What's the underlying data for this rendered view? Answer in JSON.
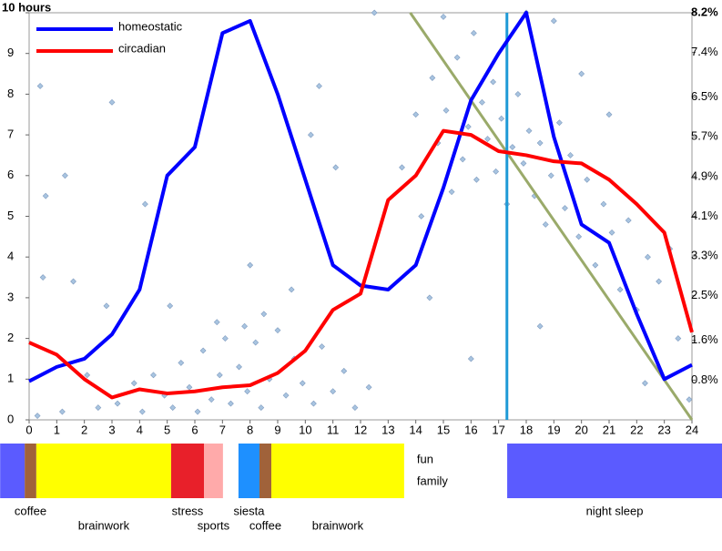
{
  "chart_data": {
    "type": "line",
    "xlim": [
      0,
      24
    ],
    "xticks": [
      0,
      1,
      2,
      3,
      4,
      5,
      6,
      7,
      8,
      9,
      10,
      11,
      12,
      13,
      14,
      15,
      16,
      17,
      18,
      19,
      20,
      21,
      22,
      23,
      24
    ],
    "ylim": [
      0,
      10
    ],
    "yticks": [
      0,
      1,
      2,
      3,
      4,
      5,
      6,
      7,
      8,
      9,
      {
        "value": 10,
        "label": "10 hours"
      }
    ],
    "y2lim": [
      0,
      8.2
    ],
    "y2ticks": [
      {
        "value": 0.8,
        "label": "0.8%"
      },
      {
        "value": 1.6,
        "label": "1.6%"
      },
      {
        "value": 2.5,
        "label": "2.5%"
      },
      {
        "value": 3.3,
        "label": "3.3%"
      },
      {
        "value": 4.1,
        "label": "4.1%"
      },
      {
        "value": 4.9,
        "label": "4.9%"
      },
      {
        "value": 5.7,
        "label": "5.7%"
      },
      {
        "value": 6.5,
        "label": "6.5%"
      },
      {
        "value": 7.4,
        "label": "7.4%"
      },
      {
        "value": 8.2,
        "label": "8.2%"
      }
    ],
    "x": [
      0,
      1,
      2,
      3,
      4,
      5,
      6,
      7,
      8,
      9,
      10,
      11,
      12,
      13,
      14,
      15,
      16,
      17,
      18,
      19,
      20,
      21,
      22,
      23,
      24
    ],
    "series": [
      {
        "name": "homeostatic",
        "color": "#0000ff",
        "values": [
          0.95,
          1.3,
          1.5,
          2.1,
          3.2,
          6.0,
          6.7,
          9.5,
          9.8,
          8.0,
          5.9,
          3.8,
          3.3,
          3.2,
          3.8,
          5.7,
          7.85,
          9.0,
          10.0,
          6.95,
          4.8,
          4.35,
          2.6,
          1.0,
          1.35
        ]
      },
      {
        "name": "circadian",
        "color": "#ff0000",
        "values": [
          1.9,
          1.6,
          1.0,
          0.55,
          0.75,
          0.65,
          0.7,
          0.8,
          0.85,
          1.15,
          1.7,
          2.7,
          3.1,
          5.4,
          6.0,
          7.1,
          7.0,
          6.6,
          6.5,
          6.35,
          6.3,
          5.9,
          5.3,
          4.6,
          2.15
        ]
      }
    ],
    "points": {
      "color": "#a8c4e0",
      "x": [
        3.2,
        3.8,
        4.1,
        4.5,
        4.9,
        5.2,
        5.5,
        5.8,
        6.1,
        6.3,
        6.6,
        6.9,
        7.1,
        7.3,
        7.6,
        7.9,
        8.2,
        8.4,
        8.7,
        9.0,
        9.3,
        9.6,
        9.9,
        10.3,
        10.6,
        11.0,
        11.4,
        11.8,
        12.3,
        2.5,
        1.2,
        0.3,
        2.1,
        6.8,
        7.8,
        8.5,
        5.1,
        9.5,
        8.0,
        13.5,
        14.0,
        14.2,
        14.6,
        14.8,
        15.1,
        15.3,
        15.5,
        15.7,
        15.9,
        16.1,
        16.2,
        16.4,
        16.6,
        16.8,
        16.9,
        17.1,
        17.3,
        17.5,
        17.7,
        17.9,
        18.1,
        18.3,
        18.5,
        18.7,
        18.9,
        19.2,
        19.4,
        19.6,
        19.9,
        20.2,
        20.5,
        20.8,
        21.1,
        21.4,
        21.7,
        22.0,
        22.4,
        22.8,
        23.2,
        23.5,
        20.0,
        21.0,
        19.0,
        18.0,
        15.0,
        12.5,
        10.5,
        10.2,
        11.1,
        0.4,
        0.6,
        1.3,
        3.0,
        1.6,
        0.5,
        23.9,
        22.3,
        16.0,
        18.5,
        14.5,
        4.2,
        2.8
      ],
      "y": [
        0.4,
        0.9,
        0.2,
        1.1,
        0.6,
        0.3,
        1.4,
        0.8,
        0.2,
        1.7,
        0.5,
        1.1,
        2.0,
        0.4,
        1.3,
        0.7,
        1.9,
        0.3,
        1.0,
        2.2,
        0.6,
        1.5,
        0.9,
        0.4,
        1.8,
        0.7,
        1.2,
        0.3,
        0.8,
        0.3,
        0.2,
        0.1,
        1.1,
        2.4,
        2.3,
        2.6,
        2.8,
        3.2,
        3.8,
        6.2,
        7.5,
        5.0,
        8.4,
        6.8,
        7.6,
        5.6,
        8.9,
        6.4,
        7.2,
        9.5,
        5.9,
        7.8,
        6.9,
        8.3,
        6.1,
        7.4,
        5.3,
        6.7,
        8.0,
        6.3,
        7.1,
        5.5,
        6.8,
        4.8,
        6.0,
        7.3,
        5.2,
        6.5,
        4.5,
        5.9,
        3.8,
        5.3,
        4.6,
        3.2,
        4.9,
        2.7,
        4.0,
        3.4,
        4.2,
        2.0,
        8.5,
        7.5,
        9.8,
        10,
        9.9,
        10,
        8.2,
        7.0,
        6.2,
        8.2,
        5.5,
        6.0,
        7.8,
        3.4,
        3.5,
        0.5,
        0.9,
        1.5,
        2.3,
        3.0,
        5.3,
        2.8
      ]
    },
    "vline": {
      "x": 17.3,
      "color": "#1e9ad6"
    },
    "trend": {
      "x": [
        13.8,
        24
      ],
      "y": [
        10,
        0
      ],
      "color": "#9aaa6a"
    }
  },
  "schedule": [
    {
      "start": -1.05,
      "end": -0.16,
      "color": "#5b5bff"
    },
    {
      "start": -0.16,
      "end": 0.26,
      "color": "#a0623a",
      "label": "coffee"
    },
    {
      "start": 0.26,
      "end": 5.14,
      "color": "#ffff00",
      "label": "brainwork"
    },
    {
      "start": 5.14,
      "end": 6.33,
      "color": "#e8202a",
      "label": "stress"
    },
    {
      "start": 6.33,
      "end": 7.02,
      "color": "#ffaaaa",
      "label": "sports"
    },
    {
      "start": 7.02,
      "end": 7.58,
      "color": "#ffffff"
    },
    {
      "start": 7.58,
      "end": 8.34,
      "color": "#1e90ff",
      "label": "siesta"
    },
    {
      "start": 8.34,
      "end": 8.77,
      "color": "#a0623a",
      "label": "coffee"
    },
    {
      "start": 8.77,
      "end": 13.58,
      "color": "#ffff00",
      "label": "brainwork"
    },
    {
      "start": 13.58,
      "end": 17.31,
      "color": "#ffffff",
      "inner": [
        "fun",
        "family"
      ]
    },
    {
      "start": 17.31,
      "end": 25.1,
      "color": "#5b5bff",
      "label": "night sleep"
    }
  ]
}
